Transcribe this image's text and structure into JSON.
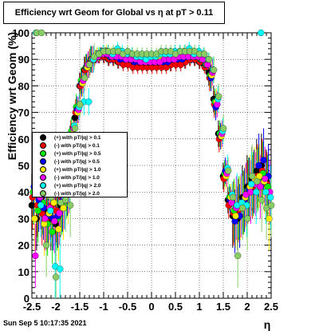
{
  "title": "Efficiency wrt Geom for Global vs    η  at pT > 0.11",
  "footer": "Sun Sep  5 10:17:35 2021",
  "chart_data": {
    "type": "scatter",
    "title": "Efficiency wrt Geom for Global vs    η  at pT > 0.11",
    "xlabel": "η",
    "ylabel": "Efficiency wrt Geom (%)",
    "xlim": [
      -2.5,
      2.5
    ],
    "ylim": [
      0,
      100
    ],
    "xticks": [
      "-2.5",
      "-2",
      "-1.5",
      "-1",
      "-0.5",
      "0",
      "0.5",
      "1",
      "1.5",
      "2",
      "2.5"
    ],
    "yticks": [
      "0",
      "10",
      "20",
      "30",
      "40",
      "50",
      "60",
      "70",
      "80",
      "90",
      "100"
    ],
    "grid": true,
    "legend_position": "left-middle",
    "series": [
      {
        "name": "(+) with pT/|q| > 0.1",
        "color": "#000000",
        "x": [
          -2.45,
          -2.35,
          -2.25,
          -2.15,
          -2.05,
          -1.95,
          -1.85,
          -1.75,
          -1.65,
          -1.55,
          -1.45,
          -1.35,
          -1.25,
          -1.15,
          -1.05,
          -0.95,
          -0.85,
          -0.75,
          -0.65,
          -0.55,
          -0.45,
          -0.35,
          -0.25,
          -0.15,
          -0.05,
          0.05,
          0.15,
          0.25,
          0.35,
          0.45,
          0.55,
          0.65,
          0.75,
          0.85,
          0.95,
          1.05,
          1.15,
          1.25,
          1.35,
          1.45,
          1.55,
          1.65,
          1.75,
          1.85,
          1.95,
          2.05,
          2.15,
          2.25,
          2.35,
          2.45
        ],
        "y": [
          35,
          30,
          38,
          33,
          30,
          28,
          35,
          40,
          60,
          68,
          80,
          86,
          88,
          90,
          91,
          91,
          90,
          90,
          89,
          89,
          89,
          88,
          88,
          88,
          88,
          88,
          88,
          88,
          88,
          88,
          89,
          89,
          89,
          90,
          90,
          89,
          88,
          85,
          75,
          62,
          46,
          37,
          31,
          30,
          38,
          42,
          45,
          48,
          50,
          44
        ]
      },
      {
        "name": "(-) with pT/|q| > 0.1",
        "color": "#ff0000",
        "x": [
          -2.45,
          -2.35,
          -2.25,
          -2.15,
          -2.05,
          -1.95,
          -1.85,
          -1.75,
          -1.65,
          -1.55,
          -1.45,
          -1.35,
          -1.25,
          -1.15,
          -1.05,
          -0.95,
          -0.85,
          -0.75,
          -0.65,
          -0.55,
          -0.45,
          -0.35,
          -0.25,
          -0.15,
          -0.05,
          0.05,
          0.15,
          0.25,
          0.35,
          0.45,
          0.55,
          0.65,
          0.75,
          0.85,
          0.95,
          1.05,
          1.15,
          1.25,
          1.35,
          1.45,
          1.55,
          1.65,
          1.75,
          1.85,
          1.95,
          2.05,
          2.15,
          2.25,
          2.35,
          2.45
        ],
        "y": [
          38,
          35,
          32,
          30,
          35,
          33,
          38,
          45,
          62,
          70,
          80,
          86,
          89,
          90,
          91,
          91,
          90,
          90,
          89,
          88,
          88,
          87,
          87,
          87,
          87,
          87,
          87,
          87,
          87,
          88,
          88,
          88,
          89,
          90,
          90,
          89,
          87,
          83,
          73,
          60,
          45,
          35,
          32,
          33,
          36,
          40,
          42,
          46,
          48,
          43
        ]
      },
      {
        "name": "(+) with pT/|q| > 0.5",
        "color": "#00ee00",
        "x": [
          -2.45,
          -2.35,
          -2.25,
          -2.15,
          -2.05,
          -1.95,
          -1.85,
          -1.75,
          -1.65,
          -1.55,
          -1.45,
          -1.35,
          -1.25,
          -1.15,
          -1.05,
          -0.95,
          -0.85,
          -0.75,
          -0.65,
          -0.55,
          -0.45,
          -0.35,
          -0.25,
          -0.15,
          -0.05,
          0.05,
          0.15,
          0.25,
          0.35,
          0.45,
          0.55,
          0.65,
          0.75,
          0.85,
          0.95,
          1.05,
          1.15,
          1.25,
          1.35,
          1.45,
          1.55,
          1.65,
          1.75,
          1.85,
          1.95,
          2.05,
          2.15,
          2.25,
          2.35,
          2.45
        ],
        "y": [
          40,
          33,
          36,
          28,
          25,
          30,
          36,
          42,
          63,
          72,
          82,
          87,
          90,
          91,
          92,
          92,
          91,
          91,
          91,
          91,
          90,
          90,
          90,
          89,
          89,
          89,
          89,
          90,
          90,
          90,
          91,
          91,
          91,
          91,
          91,
          90,
          88,
          84,
          74,
          62,
          47,
          38,
          33,
          34,
          36,
          41,
          43,
          45,
          47,
          42
        ]
      },
      {
        "name": "(-) with pT/|q| > 0.5",
        "color": "#0000ff",
        "x": [
          -2.45,
          -2.35,
          -2.25,
          -2.15,
          -2.05,
          -1.95,
          -1.85,
          -1.75,
          -1.65,
          -1.55,
          -1.45,
          -1.35,
          -1.25,
          -1.15,
          -1.05,
          -0.95,
          -0.85,
          -0.75,
          -0.65,
          -0.55,
          -0.45,
          -0.35,
          -0.25,
          -0.15,
          -0.05,
          0.05,
          0.15,
          0.25,
          0.35,
          0.45,
          0.55,
          0.65,
          0.75,
          0.85,
          0.95,
          1.05,
          1.15,
          1.25,
          1.35,
          1.45,
          1.55,
          1.65,
          1.75,
          1.85,
          1.95,
          2.05,
          2.15,
          2.25,
          2.35,
          2.45
        ],
        "y": [
          42,
          37,
          34,
          31,
          30,
          31,
          37,
          43,
          61,
          71,
          81,
          87,
          90,
          91,
          92,
          92,
          91,
          91,
          90,
          90,
          90,
          89,
          89,
          89,
          89,
          89,
          89,
          89,
          89,
          90,
          90,
          90,
          91,
          91,
          91,
          90,
          88,
          83,
          72,
          61,
          48,
          37,
          29,
          31,
          37,
          41,
          44,
          50,
          52,
          46
        ]
      },
      {
        "name": "(+) with pT/|q| > 1.0",
        "color": "#ffee00",
        "x": [
          -2.45,
          -2.35,
          -2.25,
          -2.15,
          -2.05,
          -1.95,
          -1.85,
          -1.75,
          -1.65,
          -1.55,
          -1.45,
          -1.35,
          -1.25,
          -1.15,
          -1.05,
          -0.95,
          -0.85,
          -0.75,
          -0.65,
          -0.55,
          -0.45,
          -0.35,
          -0.25,
          -0.15,
          -0.05,
          0.05,
          0.15,
          0.25,
          0.35,
          0.45,
          0.55,
          0.65,
          0.75,
          0.85,
          0.95,
          1.05,
          1.15,
          1.25,
          1.35,
          1.45,
          1.55,
          1.65,
          1.75,
          1.85,
          1.95,
          2.05,
          2.15,
          2.25,
          2.35,
          2.45
        ],
        "y": [
          30,
          40,
          28,
          32,
          36,
          26,
          34,
          40,
          62,
          70,
          81,
          87,
          90,
          92,
          92,
          93,
          92,
          92,
          92,
          91,
          91,
          91,
          90,
          90,
          90,
          90,
          90,
          91,
          91,
          91,
          91,
          92,
          92,
          92,
          91,
          90,
          88,
          84,
          74,
          61,
          46,
          38,
          31,
          34,
          38,
          42,
          45,
          46,
          44,
          30
        ]
      },
      {
        "name": "(-) with pT/|q| > 1.0",
        "color": "#ff00ff",
        "x": [
          -2.45,
          -2.35,
          -2.25,
          -2.15,
          -2.05,
          -1.95,
          -1.85,
          -1.75,
          -1.65,
          -1.55,
          -1.45,
          -1.35,
          -1.25,
          -1.15,
          -1.05,
          -0.95,
          -0.85,
          -0.75,
          -0.65,
          -0.55,
          -0.45,
          -0.35,
          -0.25,
          -0.15,
          -0.05,
          0.05,
          0.15,
          0.25,
          0.35,
          0.45,
          0.55,
          0.65,
          0.75,
          0.85,
          0.95,
          1.05,
          1.15,
          1.25,
          1.35,
          1.45,
          1.55,
          1.65,
          1.75,
          1.85,
          1.95,
          2.05,
          2.15,
          2.25,
          2.35,
          2.45
        ],
        "y": [
          16,
          38,
          30,
          34,
          29,
          32,
          38,
          44,
          64,
          71,
          82,
          88,
          90,
          91,
          92,
          92,
          91,
          91,
          91,
          90,
          90,
          90,
          89,
          89,
          89,
          89,
          89,
          90,
          90,
          90,
          91,
          91,
          91,
          91,
          91,
          90,
          88,
          85,
          73,
          62,
          47,
          36,
          34,
          35,
          39,
          40,
          43,
          42,
          45,
          40
        ]
      },
      {
        "name": "(+) with pT/|q| > 2.0",
        "color": "#00ffff",
        "x": [
          -2.45,
          -2.35,
          -2.25,
          -2.15,
          -2.05,
          -1.95,
          -1.85,
          -1.75,
          -1.65,
          -1.55,
          -1.45,
          -1.35,
          -1.25,
          -1.15,
          -1.05,
          -0.95,
          -0.85,
          -0.75,
          -0.65,
          -0.55,
          -0.45,
          -0.35,
          -0.25,
          -0.15,
          -0.05,
          0.05,
          0.15,
          0.25,
          0.35,
          0.45,
          0.55,
          0.65,
          0.75,
          0.85,
          0.95,
          1.05,
          1.15,
          1.25,
          1.35,
          1.45,
          1.55,
          1.65,
          1.75,
          1.85,
          1.95,
          2.05,
          2.15,
          2.25,
          2.35,
          2.45
        ],
        "y": [
          100,
          35,
          40,
          33,
          12,
          11,
          38,
          45,
          65,
          72,
          74,
          74,
          90,
          92,
          93,
          93,
          92,
          94,
          93,
          92,
          92,
          91,
          91,
          90,
          91,
          91,
          92,
          92,
          92,
          93,
          93,
          93,
          94,
          92,
          93,
          92,
          90,
          86,
          75,
          63,
          49,
          39,
          35,
          36,
          35,
          43,
          40,
          100,
          40,
          38
        ]
      },
      {
        "name": "(-) with pT/|q| > 2.0",
        "color": "#88cc66",
        "x": [
          -2.45,
          -2.35,
          -2.25,
          -2.15,
          -2.05,
          -1.95,
          -1.85,
          -1.75,
          -1.65,
          -1.55,
          -1.45,
          -1.35,
          -1.25,
          -1.15,
          -1.05,
          -0.95,
          -0.85,
          -0.75,
          -0.65,
          -0.55,
          -0.45,
          -0.35,
          -0.25,
          -0.15,
          -0.05,
          0.05,
          0.15,
          0.25,
          0.35,
          0.45,
          0.55,
          0.65,
          0.75,
          0.85,
          0.95,
          1.05,
          1.15,
          1.25,
          1.35,
          1.45,
          1.55,
          1.65,
          1.75,
          1.85,
          1.95,
          2.05,
          2.15,
          2.25,
          2.35,
          2.45
        ],
        "y": [
          100,
          100,
          20,
          38,
          8,
          36,
          37,
          35,
          64,
          73,
          83,
          88,
          91,
          92,
          93,
          93,
          93,
          93,
          92,
          93,
          92,
          92,
          92,
          92,
          92,
          92,
          93,
          93,
          93,
          92,
          93,
          93,
          93,
          93,
          92,
          92,
          90,
          86,
          76,
          64,
          48,
          38,
          16,
          34,
          30,
          46,
          44,
          37,
          34,
          35
        ]
      }
    ]
  }
}
